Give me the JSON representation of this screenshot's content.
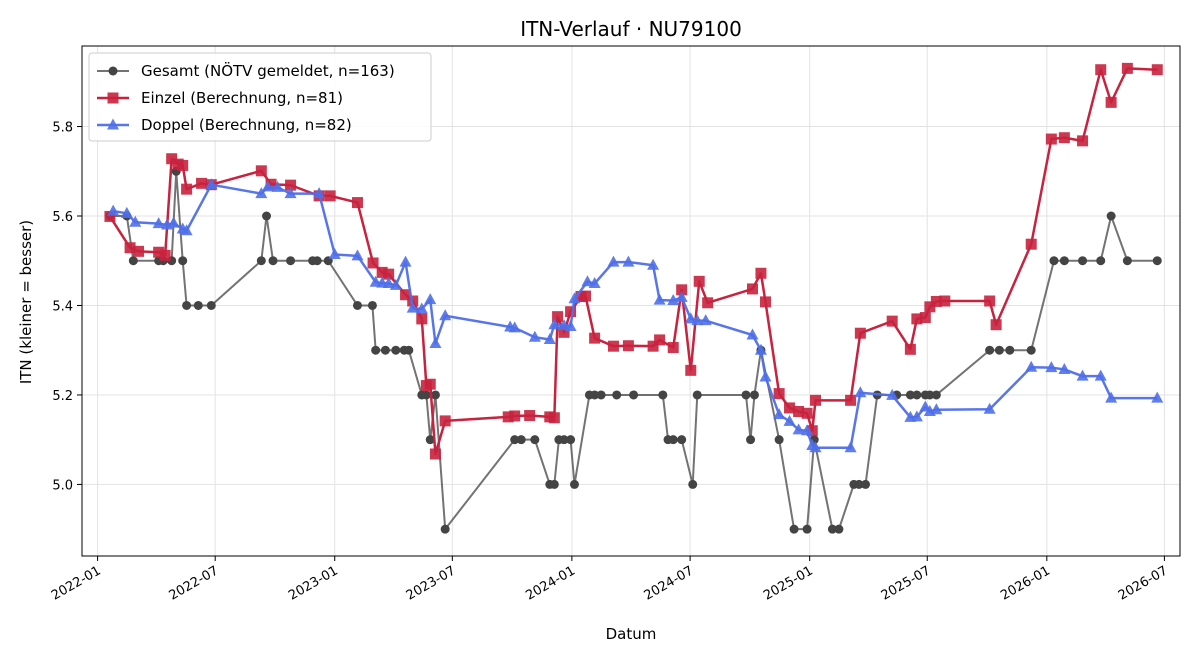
{
  "chart_data": {
    "type": "line",
    "title": "ITN-Verlauf · NU79100",
    "xlabel": "Datum",
    "ylabel": "ITN  (kleiner = besser)",
    "xlim": [
      "2021-12-08",
      "2026-07-25"
    ],
    "ylim": [
      4.84,
      5.98
    ],
    "x_ticks": [
      {
        "date": "2022-01-01",
        "label": "2022-01"
      },
      {
        "date": "2022-07-01",
        "label": "2022-07"
      },
      {
        "date": "2023-01-01",
        "label": "2023-01"
      },
      {
        "date": "2023-07-01",
        "label": "2023-07"
      },
      {
        "date": "2024-01-01",
        "label": "2024-01"
      },
      {
        "date": "2024-07-01",
        "label": "2024-07"
      },
      {
        "date": "2025-01-01",
        "label": "2025-01"
      },
      {
        "date": "2025-07-01",
        "label": "2025-07"
      },
      {
        "date": "2026-01-01",
        "label": "2026-01"
      },
      {
        "date": "2026-07-01",
        "label": "2026-07"
      }
    ],
    "y_ticks": [
      {
        "value": 5.0,
        "label": "5.0"
      },
      {
        "value": 5.2,
        "label": "5.2"
      },
      {
        "value": 5.4,
        "label": "5.4"
      },
      {
        "value": 5.6,
        "label": "5.6"
      },
      {
        "value": 5.8,
        "label": "5.8"
      }
    ],
    "grid": true,
    "legend_position": "top-left",
    "series": [
      {
        "name": "Gesamt (NÖTV gemeldet, n=163)",
        "color": "#444444",
        "marker": "circle",
        "points": [
          [
            "2022-01-20",
            5.6
          ],
          [
            "2022-02-15",
            5.6
          ],
          [
            "2022-02-25",
            5.5
          ],
          [
            "2022-04-05",
            5.5
          ],
          [
            "2022-04-12",
            5.5
          ],
          [
            "2022-04-25",
            5.5
          ],
          [
            "2022-05-02",
            5.7
          ],
          [
            "2022-05-12",
            5.5
          ],
          [
            "2022-05-18",
            5.4
          ],
          [
            "2022-06-05",
            5.4
          ],
          [
            "2022-06-25",
            5.4
          ],
          [
            "2022-09-10",
            5.5
          ],
          [
            "2022-09-18",
            5.6
          ],
          [
            "2022-09-28",
            5.5
          ],
          [
            "2022-10-25",
            5.5
          ],
          [
            "2022-11-28",
            5.5
          ],
          [
            "2022-12-05",
            5.5
          ],
          [
            "2022-12-22",
            5.5
          ],
          [
            "2023-02-05",
            5.4
          ],
          [
            "2023-02-28",
            5.4
          ],
          [
            "2023-03-05",
            5.3
          ],
          [
            "2023-03-20",
            5.3
          ],
          [
            "2023-04-05",
            5.3
          ],
          [
            "2023-04-18",
            5.3
          ],
          [
            "2023-04-25",
            5.3
          ],
          [
            "2023-05-15",
            5.2
          ],
          [
            "2023-05-22",
            5.2
          ],
          [
            "2023-05-28",
            5.1
          ],
          [
            "2023-06-05",
            5.2
          ],
          [
            "2023-06-20",
            4.9
          ],
          [
            "2023-10-05",
            5.1
          ],
          [
            "2023-10-15",
            5.1
          ],
          [
            "2023-11-05",
            5.1
          ],
          [
            "2023-11-28",
            5.0
          ],
          [
            "2023-12-05",
            5.0
          ],
          [
            "2023-12-12",
            5.1
          ],
          [
            "2023-12-20",
            5.1
          ],
          [
            "2023-12-30",
            5.1
          ],
          [
            "2024-01-05",
            5.0
          ],
          [
            "2024-01-28",
            5.2
          ],
          [
            "2024-02-05",
            5.2
          ],
          [
            "2024-02-15",
            5.2
          ],
          [
            "2024-03-10",
            5.2
          ],
          [
            "2024-04-05",
            5.2
          ],
          [
            "2024-05-20",
            5.2
          ],
          [
            "2024-05-28",
            5.1
          ],
          [
            "2024-06-05",
            5.1
          ],
          [
            "2024-06-18",
            5.1
          ],
          [
            "2024-07-05",
            5.0
          ],
          [
            "2024-07-12",
            5.2
          ],
          [
            "2024-09-25",
            5.2
          ],
          [
            "2024-10-02",
            5.1
          ],
          [
            "2024-10-08",
            5.2
          ],
          [
            "2024-10-18",
            5.3
          ],
          [
            "2024-11-15",
            5.1
          ],
          [
            "2024-12-08",
            4.9
          ],
          [
            "2024-12-28",
            4.9
          ],
          [
            "2025-01-08",
            5.1
          ],
          [
            "2025-02-05",
            4.9
          ],
          [
            "2025-02-15",
            4.9
          ],
          [
            "2025-03-10",
            5.0
          ],
          [
            "2025-03-18",
            5.0
          ],
          [
            "2025-03-28",
            5.0
          ],
          [
            "2025-04-15",
            5.2
          ],
          [
            "2025-05-15",
            5.2
          ],
          [
            "2025-06-05",
            5.2
          ],
          [
            "2025-06-15",
            5.2
          ],
          [
            "2025-06-28",
            5.2
          ],
          [
            "2025-07-05",
            5.2
          ],
          [
            "2025-07-15",
            5.2
          ],
          [
            "2025-10-05",
            5.3
          ],
          [
            "2025-10-20",
            5.3
          ],
          [
            "2025-11-05",
            5.3
          ],
          [
            "2025-12-08",
            5.3
          ],
          [
            "2026-01-12",
            5.5
          ],
          [
            "2026-01-28",
            5.5
          ],
          [
            "2026-02-25",
            5.5
          ],
          [
            "2026-03-25",
            5.5
          ],
          [
            "2026-04-10",
            5.6
          ],
          [
            "2026-05-05",
            5.5
          ],
          [
            "2026-06-20",
            5.5
          ]
        ]
      },
      {
        "name": "Einzel (Berechnung, n=81)",
        "color": "#c8223e",
        "marker": "square",
        "points": [
          [
            "2022-01-20",
            5.599
          ],
          [
            "2022-02-20",
            5.529
          ],
          [
            "2022-03-05",
            5.521
          ],
          [
            "2022-04-05",
            5.519
          ],
          [
            "2022-04-15",
            5.512
          ],
          [
            "2022-04-25",
            5.728
          ],
          [
            "2022-05-05",
            5.716
          ],
          [
            "2022-05-12",
            5.713
          ],
          [
            "2022-05-18",
            5.66
          ],
          [
            "2022-06-10",
            5.673
          ],
          [
            "2022-06-25",
            5.67
          ],
          [
            "2022-09-10",
            5.701
          ],
          [
            "2022-09-25",
            5.671
          ],
          [
            "2022-10-25",
            5.669
          ],
          [
            "2022-12-08",
            5.645
          ],
          [
            "2022-12-25",
            5.645
          ],
          [
            "2023-02-05",
            5.63
          ],
          [
            "2023-03-01",
            5.495
          ],
          [
            "2023-03-15",
            5.474
          ],
          [
            "2023-03-25",
            5.47
          ],
          [
            "2023-04-20",
            5.424
          ],
          [
            "2023-05-01",
            5.41
          ],
          [
            "2023-05-15",
            5.37
          ],
          [
            "2023-05-22",
            5.221
          ],
          [
            "2023-05-28",
            5.224
          ],
          [
            "2023-06-05",
            5.068
          ],
          [
            "2023-06-20",
            5.142
          ],
          [
            "2023-09-25",
            5.151
          ],
          [
            "2023-10-05",
            5.153
          ],
          [
            "2023-10-28",
            5.154
          ],
          [
            "2023-11-28",
            5.151
          ],
          [
            "2023-12-05",
            5.149
          ],
          [
            "2023-12-10",
            5.375
          ],
          [
            "2023-12-20",
            5.34
          ],
          [
            "2023-12-30",
            5.386
          ],
          [
            "2024-01-15",
            5.42
          ],
          [
            "2024-01-22",
            5.421
          ],
          [
            "2024-02-05",
            5.327
          ],
          [
            "2024-03-05",
            5.309
          ],
          [
            "2024-03-28",
            5.31
          ],
          [
            "2024-05-05",
            5.309
          ],
          [
            "2024-05-15",
            5.323
          ],
          [
            "2024-06-05",
            5.306
          ],
          [
            "2024-06-18",
            5.435
          ],
          [
            "2024-07-02",
            5.255
          ],
          [
            "2024-07-15",
            5.454
          ],
          [
            "2024-07-28",
            5.406
          ],
          [
            "2024-10-05",
            5.437
          ],
          [
            "2024-10-18",
            5.472
          ],
          [
            "2024-10-25",
            5.408
          ],
          [
            "2024-11-15",
            5.203
          ],
          [
            "2024-12-01",
            5.171
          ],
          [
            "2024-12-15",
            5.163
          ],
          [
            "2024-12-28",
            5.159
          ],
          [
            "2025-01-05",
            5.12
          ],
          [
            "2025-01-10",
            5.188
          ],
          [
            "2025-03-05",
            5.188
          ],
          [
            "2025-03-20",
            5.338
          ],
          [
            "2025-05-08",
            5.365
          ],
          [
            "2025-06-05",
            5.302
          ],
          [
            "2025-06-15",
            5.37
          ],
          [
            "2025-06-28",
            5.373
          ],
          [
            "2025-07-05",
            5.397
          ],
          [
            "2025-07-15",
            5.409
          ],
          [
            "2025-07-28",
            5.41
          ],
          [
            "2025-10-05",
            5.41
          ],
          [
            "2025-10-15",
            5.357
          ],
          [
            "2025-12-08",
            5.537
          ],
          [
            "2026-01-08",
            5.772
          ],
          [
            "2026-01-28",
            5.775
          ],
          [
            "2026-02-25",
            5.768
          ],
          [
            "2026-03-25",
            5.927
          ],
          [
            "2026-04-10",
            5.854
          ],
          [
            "2026-05-05",
            5.93
          ],
          [
            "2026-06-20",
            5.927
          ]
        ]
      },
      {
        "name": "Doppel (Berechnung, n=82)",
        "color": "#4f6fe8",
        "marker": "triangle",
        "points": [
          [
            "2022-01-25",
            5.611
          ],
          [
            "2022-02-15",
            5.606
          ],
          [
            "2022-02-28",
            5.586
          ],
          [
            "2022-04-05",
            5.583
          ],
          [
            "2022-04-18",
            5.58
          ],
          [
            "2022-04-28",
            5.584
          ],
          [
            "2022-05-12",
            5.571
          ],
          [
            "2022-05-18",
            5.567
          ],
          [
            "2022-06-25",
            5.67
          ],
          [
            "2022-09-10",
            5.65
          ],
          [
            "2022-09-20",
            5.665
          ],
          [
            "2022-10-05",
            5.664
          ],
          [
            "2022-10-25",
            5.65
          ],
          [
            "2022-12-08",
            5.65
          ],
          [
            "2023-01-01",
            5.514
          ],
          [
            "2023-02-05",
            5.511
          ],
          [
            "2023-03-05",
            5.452
          ],
          [
            "2023-03-15",
            5.45
          ],
          [
            "2023-03-25",
            5.449
          ],
          [
            "2023-04-05",
            5.445
          ],
          [
            "2023-04-20",
            5.497
          ],
          [
            "2023-05-01",
            5.394
          ],
          [
            "2023-05-15",
            5.392
          ],
          [
            "2023-05-28",
            5.413
          ],
          [
            "2023-06-05",
            5.315
          ],
          [
            "2023-06-20",
            5.377
          ],
          [
            "2023-09-28",
            5.352
          ],
          [
            "2023-10-05",
            5.35
          ],
          [
            "2023-11-05",
            5.329
          ],
          [
            "2023-11-28",
            5.324
          ],
          [
            "2023-12-05",
            5.357
          ],
          [
            "2023-12-20",
            5.355
          ],
          [
            "2023-12-30",
            5.353
          ],
          [
            "2024-01-05",
            5.415
          ],
          [
            "2024-01-25",
            5.453
          ],
          [
            "2024-02-05",
            5.449
          ],
          [
            "2024-03-05",
            5.497
          ],
          [
            "2024-03-28",
            5.497
          ],
          [
            "2024-05-05",
            5.49
          ],
          [
            "2024-05-15",
            5.412
          ],
          [
            "2024-06-05",
            5.411
          ],
          [
            "2024-06-18",
            5.418
          ],
          [
            "2024-07-02",
            5.37
          ],
          [
            "2024-07-12",
            5.366
          ],
          [
            "2024-07-25",
            5.366
          ],
          [
            "2024-10-05",
            5.334
          ],
          [
            "2024-10-18",
            5.3
          ],
          [
            "2024-10-25",
            5.24
          ],
          [
            "2024-11-15",
            5.156
          ],
          [
            "2024-12-01",
            5.141
          ],
          [
            "2024-12-15",
            5.122
          ],
          [
            "2024-12-28",
            5.12
          ],
          [
            "2025-01-05",
            5.087
          ],
          [
            "2025-01-10",
            5.082
          ],
          [
            "2025-03-05",
            5.082
          ],
          [
            "2025-03-20",
            5.205
          ],
          [
            "2025-05-08",
            5.199
          ],
          [
            "2025-06-05",
            5.15
          ],
          [
            "2025-06-15",
            5.151
          ],
          [
            "2025-06-28",
            5.173
          ],
          [
            "2025-07-05",
            5.163
          ],
          [
            "2025-07-15",
            5.167
          ],
          [
            "2025-10-05",
            5.168
          ],
          [
            "2025-12-08",
            5.262
          ],
          [
            "2026-01-08",
            5.261
          ],
          [
            "2026-01-28",
            5.257
          ],
          [
            "2026-02-25",
            5.242
          ],
          [
            "2026-03-25",
            5.242
          ],
          [
            "2026-04-10",
            5.193
          ],
          [
            "2026-06-20",
            5.193
          ]
        ]
      }
    ]
  }
}
